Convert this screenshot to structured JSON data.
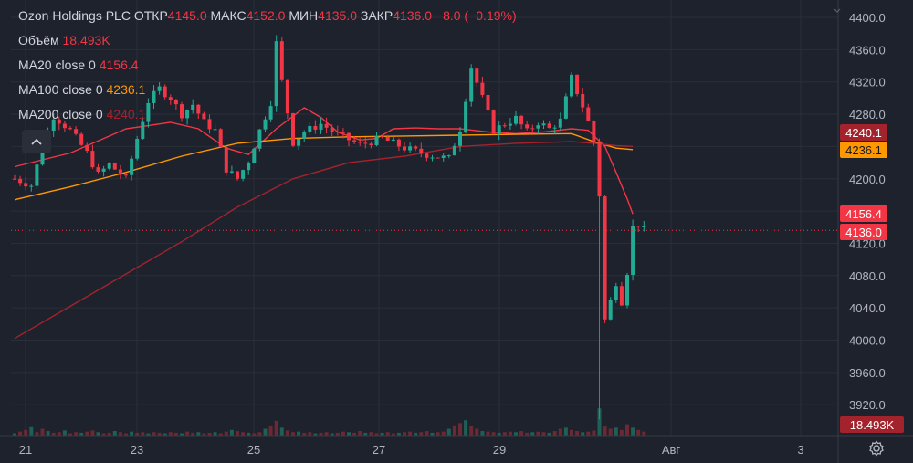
{
  "legend": {
    "symbol": "Ozon Holdings PLC",
    "open_label": "ОТКР",
    "open": "4145.0",
    "high_label": "МАКС",
    "high": "4152.0",
    "low_label": "МИН",
    "low": "4135.0",
    "close_label": "ЗАКР",
    "close": "4136.0",
    "change": "−8.0 (−0.19%)",
    "volume_label": "Объём",
    "volume": "18.493K",
    "ma20_label": "MA20 close 0",
    "ma20": "4156.4",
    "ma100_label": "MA100 close 0",
    "ma100": "4236.1",
    "ma200_label": "MA200 close 0",
    "ma200": "4240.1"
  },
  "collapse_icon": "chevron-up-icon",
  "settings_icon": "gear-icon",
  "colors": {
    "background": "#1e222d",
    "up": "#22ab94",
    "down": "#f23645",
    "ma20": "#f23645",
    "ma100": "#ff9800",
    "ma200": "#a3232d",
    "grid": "#2a2e39"
  },
  "chart_data": {
    "type": "candlestick",
    "title": "Ozon Holdings PLC",
    "ylim": [
      3900,
      4410
    ],
    "y_ticks": [
      "4400.0",
      "4360.0",
      "4320.0",
      "4280.0",
      "4240.0",
      "4200.0",
      "4160.0",
      "4120.0",
      "4080.0",
      "4040.0",
      "4000.0",
      "3960.0",
      "3920.0"
    ],
    "x_ticks": [
      "21",
      "23",
      "25",
      "27",
      "29",
      "Авг",
      "3"
    ],
    "price_badges": [
      {
        "value": "4240.1",
        "color": "#a3232d",
        "series": "MA200"
      },
      {
        "value": "4236.1",
        "color": "#ff9800",
        "series": "MA100"
      },
      {
        "value": "4156.4",
        "color": "#f23645",
        "series": "MA20"
      },
      {
        "value": "4136.0",
        "color": "#f23645",
        "series": "last"
      }
    ],
    "volume_badge": "18.493K",
    "last_close": 4136.0,
    "series": [
      {
        "name": "MA20 close 0",
        "color": "#f23645",
        "points": [
          [
            0,
            4215
          ],
          [
            10,
            4232
          ],
          [
            20,
            4262
          ],
          [
            28,
            4270
          ],
          [
            33,
            4262
          ],
          [
            38,
            4238
          ],
          [
            42,
            4230
          ],
          [
            47,
            4262
          ],
          [
            52,
            4288
          ],
          [
            55,
            4276
          ],
          [
            58,
            4258
          ],
          [
            62,
            4248
          ],
          [
            65,
            4250
          ],
          [
            68,
            4262
          ],
          [
            72,
            4263
          ],
          [
            76,
            4262
          ],
          [
            80,
            4262
          ],
          [
            85,
            4258
          ],
          [
            90,
            4256
          ],
          [
            95,
            4258
          ],
          [
            100,
            4262
          ],
          [
            103,
            4260
          ],
          [
            106,
            4240
          ],
          [
            108,
            4208
          ],
          [
            110,
            4175
          ],
          [
            111,
            4156.4
          ]
        ]
      },
      {
        "name": "MA100 close 0",
        "color": "#ff9800",
        "points": [
          [
            0,
            4174
          ],
          [
            10,
            4190
          ],
          [
            20,
            4208
          ],
          [
            30,
            4228
          ],
          [
            40,
            4244
          ],
          [
            50,
            4250
          ],
          [
            60,
            4252
          ],
          [
            70,
            4253
          ],
          [
            80,
            4254
          ],
          [
            90,
            4255
          ],
          [
            100,
            4256
          ],
          [
            104,
            4246
          ],
          [
            108,
            4238
          ],
          [
            111,
            4236.1
          ]
        ]
      },
      {
        "name": "MA200 close 0",
        "color": "#a3232d",
        "points": [
          [
            0,
            4002
          ],
          [
            10,
            4042
          ],
          [
            20,
            4082
          ],
          [
            30,
            4122
          ],
          [
            40,
            4165
          ],
          [
            50,
            4200
          ],
          [
            60,
            4220
          ],
          [
            70,
            4228
          ],
          [
            80,
            4240
          ],
          [
            90,
            4244
          ],
          [
            100,
            4246
          ],
          [
            104,
            4244
          ],
          [
            108,
            4241
          ],
          [
            111,
            4240.1
          ]
        ]
      }
    ],
    "anchors": [
      [
        0,
        4200
      ],
      [
        3,
        4192
      ],
      [
        5,
        4240
      ],
      [
        7,
        4278
      ],
      [
        10,
        4260
      ],
      [
        13,
        4232
      ],
      [
        15,
        4205
      ],
      [
        17,
        4218
      ],
      [
        20,
        4200
      ],
      [
        22,
        4250
      ],
      [
        24,
        4296
      ],
      [
        26,
        4312
      ],
      [
        28,
        4300
      ],
      [
        30,
        4280
      ],
      [
        32,
        4292
      ],
      [
        34,
        4270
      ],
      [
        36,
        4260
      ],
      [
        38,
        4212
      ],
      [
        40,
        4200
      ],
      [
        42,
        4222
      ],
      [
        44,
        4260
      ],
      [
        46,
        4295
      ],
      [
        47,
        4368
      ],
      [
        48,
        4320
      ],
      [
        50,
        4245
      ],
      [
        52,
        4258
      ],
      [
        55,
        4268
      ],
      [
        58,
        4255
      ],
      [
        62,
        4242
      ],
      [
        66,
        4250
      ],
      [
        70,
        4238
      ],
      [
        74,
        4230
      ],
      [
        78,
        4225
      ],
      [
        80,
        4262
      ],
      [
        82,
        4338
      ],
      [
        84,
        4300
      ],
      [
        86,
        4260
      ],
      [
        88,
        4268
      ],
      [
        90,
        4275
      ],
      [
        92,
        4258
      ],
      [
        94,
        4270
      ],
      [
        96,
        4262
      ],
      [
        98,
        4272
      ],
      [
        100,
        4325
      ],
      [
        102,
        4290
      ],
      [
        103,
        4270
      ],
      [
        104,
        4245
      ],
      [
        105,
        4180
      ],
      [
        105.5,
        4060
      ],
      [
        106,
        4025
      ],
      [
        107,
        4048
      ],
      [
        108,
        4072
      ],
      [
        109,
        4048
      ],
      [
        110,
        4085
      ],
      [
        111,
        4140
      ],
      [
        112,
        4144
      ],
      [
        113,
        4136
      ]
    ],
    "volume": [
      [
        0,
        4
      ],
      [
        1,
        7
      ],
      [
        2,
        10
      ],
      [
        3,
        15
      ],
      [
        4,
        6
      ],
      [
        5,
        12
      ],
      [
        6,
        8
      ],
      [
        7,
        5
      ],
      [
        8,
        6
      ],
      [
        9,
        9
      ],
      [
        10,
        4
      ],
      [
        11,
        6
      ],
      [
        12,
        5
      ],
      [
        13,
        7
      ],
      [
        14,
        9
      ],
      [
        15,
        6
      ],
      [
        16,
        4
      ],
      [
        17,
        5
      ],
      [
        18,
        8
      ],
      [
        19,
        6
      ],
      [
        20,
        4
      ],
      [
        21,
        7
      ],
      [
        22,
        5
      ],
      [
        23,
        6
      ],
      [
        24,
        4
      ],
      [
        25,
        6
      ],
      [
        26,
        5
      ],
      [
        27,
        4
      ],
      [
        28,
        6
      ],
      [
        29,
        5
      ],
      [
        30,
        4
      ],
      [
        31,
        7
      ],
      [
        32,
        5
      ],
      [
        33,
        6
      ],
      [
        34,
        4
      ],
      [
        35,
        5
      ],
      [
        36,
        6
      ],
      [
        37,
        4
      ],
      [
        38,
        7
      ],
      [
        39,
        10
      ],
      [
        40,
        8
      ],
      [
        41,
        6
      ],
      [
        42,
        5
      ],
      [
        43,
        4
      ],
      [
        44,
        6
      ],
      [
        45,
        12
      ],
      [
        46,
        18
      ],
      [
        47,
        26
      ],
      [
        48,
        14
      ],
      [
        49,
        9
      ],
      [
        50,
        6
      ],
      [
        51,
        7
      ],
      [
        52,
        5
      ],
      [
        53,
        6
      ],
      [
        54,
        4
      ],
      [
        55,
        5
      ],
      [
        56,
        6
      ],
      [
        57,
        4
      ],
      [
        58,
        5
      ],
      [
        59,
        7
      ],
      [
        60,
        6
      ],
      [
        61,
        5
      ],
      [
        62,
        8
      ],
      [
        63,
        5
      ],
      [
        64,
        6
      ],
      [
        65,
        4
      ],
      [
        66,
        5
      ],
      [
        67,
        6
      ],
      [
        68,
        4
      ],
      [
        69,
        5
      ],
      [
        70,
        6
      ],
      [
        71,
        7
      ],
      [
        72,
        5
      ],
      [
        73,
        6
      ],
      [
        74,
        8
      ],
      [
        75,
        5
      ],
      [
        76,
        6
      ],
      [
        77,
        7
      ],
      [
        78,
        12
      ],
      [
        79,
        18
      ],
      [
        80,
        22
      ],
      [
        81,
        27
      ],
      [
        82,
        17
      ],
      [
        83,
        12
      ],
      [
        84,
        8
      ],
      [
        85,
        7
      ],
      [
        86,
        6
      ],
      [
        87,
        5
      ],
      [
        88,
        6
      ],
      [
        89,
        7
      ],
      [
        90,
        6
      ],
      [
        91,
        8
      ],
      [
        92,
        5
      ],
      [
        93,
        6
      ],
      [
        94,
        7
      ],
      [
        95,
        6
      ],
      [
        96,
        5
      ],
      [
        97,
        8
      ],
      [
        98,
        12
      ],
      [
        99,
        14
      ],
      [
        100,
        10
      ],
      [
        101,
        8
      ],
      [
        102,
        6
      ],
      [
        103,
        7
      ],
      [
        104,
        9
      ],
      [
        105,
        48
      ],
      [
        106,
        16
      ],
      [
        107,
        12
      ],
      [
        108,
        14
      ],
      [
        109,
        10
      ],
      [
        110,
        20
      ],
      [
        111,
        14
      ],
      [
        112,
        10
      ],
      [
        113,
        7
      ]
    ]
  }
}
